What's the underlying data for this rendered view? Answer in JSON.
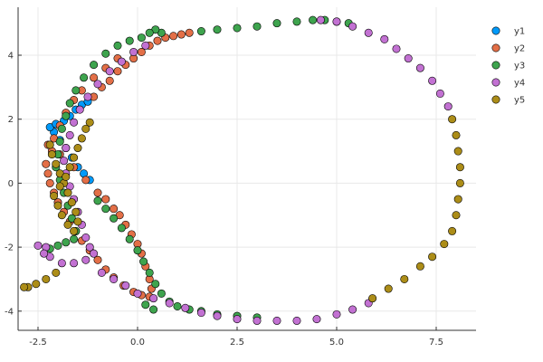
{
  "chart_data": {
    "type": "scatter",
    "title": "",
    "xlabel": "",
    "ylabel": "",
    "xlim": [
      -3.0,
      8.5
    ],
    "ylim": [
      -4.6,
      5.5
    ],
    "xticks": [
      -2.5,
      0.0,
      2.5,
      5.0,
      7.5
    ],
    "xtick_labels": [
      "-2.5",
      "0.0",
      "2.5",
      "5.0",
      "7.5"
    ],
    "yticks": [
      -4,
      -2,
      0,
      2,
      4
    ],
    "ytick_labels": [
      "-4",
      "-2",
      "0",
      "2",
      "4"
    ],
    "grid": true,
    "legend_position": "top-right",
    "series": [
      {
        "name": "y1",
        "color": "#009AFA",
        "points": [
          [
            -1.2,
            0.1
          ],
          [
            -1.35,
            0.3
          ],
          [
            -1.5,
            0.5
          ],
          [
            -1.65,
            0.8
          ],
          [
            -1.8,
            1.1
          ],
          [
            -1.95,
            1.35
          ],
          [
            -2.1,
            1.6
          ],
          [
            -2.2,
            1.75
          ],
          [
            -2.05,
            1.85
          ],
          [
            -1.85,
            1.95
          ],
          [
            -1.7,
            2.1
          ],
          [
            -1.55,
            2.3
          ],
          [
            -1.4,
            2.45
          ],
          [
            -1.25,
            2.55
          ]
        ]
      },
      {
        "name": "y2",
        "color": "#E36F47",
        "points": [
          [
            -1.1,
            2.7
          ],
          [
            -0.9,
            3.0
          ],
          [
            -0.7,
            3.2
          ],
          [
            -0.5,
            3.5
          ],
          [
            -0.3,
            3.7
          ],
          [
            -0.1,
            3.9
          ],
          [
            0.1,
            4.1
          ],
          [
            0.3,
            4.3
          ],
          [
            0.5,
            4.45
          ],
          [
            0.7,
            4.55
          ],
          [
            0.9,
            4.6
          ],
          [
            1.1,
            4.65
          ],
          [
            1.3,
            4.7
          ],
          [
            -0.5,
            3.9
          ],
          [
            -0.8,
            3.6
          ],
          [
            -1.1,
            3.3
          ],
          [
            -1.4,
            2.9
          ],
          [
            -1.6,
            2.6
          ],
          [
            -1.8,
            2.2
          ],
          [
            -1.95,
            1.8
          ],
          [
            -2.1,
            1.4
          ],
          [
            -2.25,
            1.2
          ],
          [
            -2.15,
            1.0
          ],
          [
            -1.95,
            0.9
          ],
          [
            -1.6,
            0.5
          ],
          [
            -1.3,
            0.1
          ],
          [
            -1.0,
            -0.3
          ],
          [
            -0.8,
            -0.5
          ],
          [
            -0.6,
            -0.8
          ],
          [
            -0.45,
            -1.0
          ],
          [
            -0.3,
            -1.3
          ],
          [
            -0.15,
            -1.6
          ],
          [
            0.0,
            -1.9
          ],
          [
            0.1,
            -2.2
          ],
          [
            0.2,
            -2.6
          ],
          [
            0.3,
            -3.0
          ],
          [
            0.35,
            -3.3
          ],
          [
            0.3,
            -3.55
          ],
          [
            0.1,
            -3.5
          ],
          [
            -0.1,
            -3.4
          ],
          [
            -0.35,
            -3.2
          ],
          [
            -0.6,
            -2.95
          ],
          [
            -0.8,
            -2.7
          ],
          [
            -1.0,
            -2.4
          ],
          [
            -1.2,
            -2.1
          ],
          [
            -1.4,
            -1.8
          ],
          [
            -1.55,
            -1.5
          ],
          [
            -1.7,
            -1.2
          ],
          [
            -1.85,
            -0.9
          ],
          [
            -2.0,
            -0.6
          ],
          [
            -2.1,
            -0.3
          ],
          [
            -2.2,
            0.0
          ],
          [
            -2.25,
            0.3
          ],
          [
            -2.3,
            0.6
          ]
        ]
      },
      {
        "name": "y3",
        "color": "#3EA44E",
        "points": [
          [
            1.6,
            4.75
          ],
          [
            2.0,
            4.8
          ],
          [
            2.5,
            4.85
          ],
          [
            3.0,
            4.9
          ],
          [
            3.5,
            5.0
          ],
          [
            4.0,
            5.05
          ],
          [
            4.4,
            5.1
          ],
          [
            4.7,
            5.1
          ],
          [
            5.0,
            5.05
          ],
          [
            5.3,
            5.0
          ],
          [
            0.6,
            4.7
          ],
          [
            0.45,
            4.8
          ],
          [
            0.3,
            4.7
          ],
          [
            0.1,
            4.55
          ],
          [
            -0.2,
            4.45
          ],
          [
            -0.5,
            4.3
          ],
          [
            -0.8,
            4.05
          ],
          [
            -1.1,
            3.7
          ],
          [
            -1.35,
            3.3
          ],
          [
            -1.55,
            2.9
          ],
          [
            -1.7,
            2.5
          ],
          [
            -1.8,
            2.1
          ],
          [
            -1.9,
            1.7
          ],
          [
            -1.95,
            1.3
          ],
          [
            -2.0,
            0.9
          ],
          [
            -2.05,
            0.5
          ],
          [
            -1.95,
            0.1
          ],
          [
            -1.85,
            -0.3
          ],
          [
            -1.75,
            -0.7
          ],
          [
            -1.65,
            -1.1
          ],
          [
            -1.55,
            -1.5
          ],
          [
            -1.6,
            -1.75
          ],
          [
            -1.8,
            -1.85
          ],
          [
            -2.0,
            -1.95
          ],
          [
            -2.2,
            -2.05
          ],
          [
            -1.0,
            -0.55
          ],
          [
            -0.8,
            -0.8
          ],
          [
            -0.6,
            -1.1
          ],
          [
            -0.4,
            -1.4
          ],
          [
            -0.2,
            -1.75
          ],
          [
            0.0,
            -2.1
          ],
          [
            0.15,
            -2.45
          ],
          [
            0.3,
            -2.8
          ],
          [
            0.45,
            -3.15
          ],
          [
            0.6,
            -3.45
          ],
          [
            0.8,
            -3.7
          ],
          [
            1.0,
            -3.85
          ],
          [
            1.3,
            -3.95
          ],
          [
            1.6,
            -4.0
          ],
          [
            2.0,
            -4.1
          ],
          [
            2.5,
            -4.15
          ],
          [
            3.0,
            -4.2
          ],
          [
            0.4,
            -3.95
          ],
          [
            0.2,
            -3.8
          ]
        ]
      },
      {
        "name": "y4",
        "color": "#C271D2",
        "points": [
          [
            4.6,
            5.1
          ],
          [
            5.0,
            5.05
          ],
          [
            5.4,
            4.9
          ],
          [
            5.8,
            4.7
          ],
          [
            6.2,
            4.5
          ],
          [
            6.5,
            4.2
          ],
          [
            6.8,
            3.9
          ],
          [
            7.1,
            3.6
          ],
          [
            7.4,
            3.2
          ],
          [
            7.6,
            2.8
          ],
          [
            7.8,
            2.4
          ],
          [
            0.2,
            4.3
          ],
          [
            -0.1,
            4.1
          ],
          [
            -0.4,
            3.8
          ],
          [
            -0.7,
            3.5
          ],
          [
            -1.0,
            3.1
          ],
          [
            -1.25,
            2.7
          ],
          [
            -1.45,
            2.3
          ],
          [
            -1.6,
            1.9
          ],
          [
            -1.7,
            1.5
          ],
          [
            -1.8,
            1.1
          ],
          [
            -1.85,
            0.7
          ],
          [
            -1.8,
            0.3
          ],
          [
            -1.7,
            -0.1
          ],
          [
            -1.6,
            -0.5
          ],
          [
            -1.5,
            -0.9
          ],
          [
            -1.4,
            -1.3
          ],
          [
            -1.3,
            -1.7
          ],
          [
            -1.2,
            -2.0
          ],
          [
            -1.1,
            -2.2
          ],
          [
            -1.3,
            -2.4
          ],
          [
            -1.6,
            -2.5
          ],
          [
            -1.9,
            -2.5
          ],
          [
            -2.2,
            -2.3
          ],
          [
            -2.3,
            -2.0
          ],
          [
            -2.5,
            -1.95
          ],
          [
            -2.35,
            -2.2
          ],
          [
            -0.9,
            -2.8
          ],
          [
            -0.6,
            -3.0
          ],
          [
            -0.3,
            -3.2
          ],
          [
            0.0,
            -3.45
          ],
          [
            0.4,
            -3.6
          ],
          [
            0.8,
            -3.75
          ],
          [
            1.2,
            -3.9
          ],
          [
            1.6,
            -4.05
          ],
          [
            2.0,
            -4.15
          ],
          [
            2.5,
            -4.25
          ],
          [
            3.0,
            -4.3
          ],
          [
            3.5,
            -4.3
          ],
          [
            4.0,
            -4.3
          ],
          [
            4.5,
            -4.25
          ],
          [
            5.0,
            -4.1
          ],
          [
            5.4,
            -3.95
          ],
          [
            5.8,
            -3.75
          ]
        ]
      },
      {
        "name": "y5",
        "color": "#AC8D18",
        "points": [
          [
            7.9,
            2.0
          ],
          [
            8.0,
            1.5
          ],
          [
            8.05,
            1.0
          ],
          [
            8.1,
            0.5
          ],
          [
            8.1,
            0.0
          ],
          [
            8.05,
            -0.5
          ],
          [
            8.0,
            -1.0
          ],
          [
            7.9,
            -1.5
          ],
          [
            7.7,
            -1.9
          ],
          [
            7.4,
            -2.3
          ],
          [
            7.1,
            -2.6
          ],
          [
            6.7,
            -3.0
          ],
          [
            6.3,
            -3.3
          ],
          [
            5.9,
            -3.6
          ],
          [
            -2.2,
            1.2
          ],
          [
            -2.15,
            0.9
          ],
          [
            -2.05,
            0.6
          ],
          [
            -1.95,
            0.3
          ],
          [
            -1.85,
            0.0
          ],
          [
            -1.75,
            -0.3
          ],
          [
            -1.65,
            -0.6
          ],
          [
            -1.55,
            -0.9
          ],
          [
            -1.5,
            -1.2
          ],
          [
            -1.6,
            -1.5
          ],
          [
            -1.75,
            -1.3
          ],
          [
            -1.9,
            -1.0
          ],
          [
            -2.0,
            -0.7
          ],
          [
            -2.1,
            -0.4
          ],
          [
            -1.95,
            -0.1
          ],
          [
            -1.8,
            0.2
          ],
          [
            -1.7,
            0.5
          ],
          [
            -1.6,
            0.8
          ],
          [
            -1.5,
            1.1
          ],
          [
            -1.4,
            1.4
          ],
          [
            -1.3,
            1.7
          ],
          [
            -1.2,
            1.9
          ],
          [
            -2.05,
            -2.8
          ],
          [
            -2.3,
            -3.0
          ],
          [
            -2.55,
            -3.15
          ],
          [
            -2.75,
            -3.25
          ],
          [
            -2.85,
            -3.25
          ]
        ]
      }
    ]
  }
}
